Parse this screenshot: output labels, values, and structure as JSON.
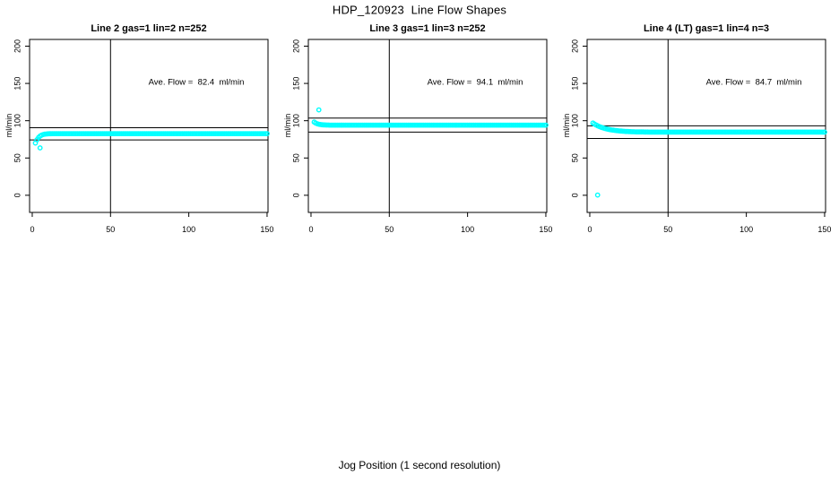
{
  "page": {
    "title": "HDP_120923  Line Flow Shapes",
    "xlabel": "Jog Position (1 second resolution)"
  },
  "style": {
    "point_color": "#00ffff",
    "axis_color": "#000000",
    "background": "#ffffff"
  },
  "chart_data": [
    {
      "type": "scatter",
      "title": "Line 2 gas=1 lin=2 n=252",
      "ylabel": "ml/min",
      "annotation": "Ave. Flow =  82.4  ml/min",
      "ave_flow_ml_min": 82.4,
      "xlim": [
        -1.7,
        150.6
      ],
      "ylim": [
        -23,
        209
      ],
      "xticks": [
        0,
        50,
        100,
        150
      ],
      "yticks": [
        0,
        50,
        100,
        150,
        200
      ],
      "vline_x": 50,
      "hlines_y": [
        90.6,
        74.2
      ],
      "grid": false,
      "series": {
        "x_start": 2,
        "x_step": 1,
        "x_end": 150,
        "y_head": [
          70.0,
          74.5,
          77.5,
          79.4,
          80.6,
          81.4,
          81.9,
          82.2,
          82.4,
          82.5,
          82.6,
          82.7
        ],
        "y_plateau": 82.7
      },
      "outlier_points": [
        [
          5,
          63.5
        ]
      ]
    },
    {
      "type": "scatter",
      "title": "Line 3 gas=1 lin=3 n=252",
      "ylabel": "ml/min",
      "annotation": "Ave. Flow =  94.1  ml/min",
      "ave_flow_ml_min": 94.1,
      "xlim": [
        -1.7,
        150.6
      ],
      "ylim": [
        -23,
        209
      ],
      "xticks": [
        0,
        50,
        100,
        150
      ],
      "yticks": [
        0,
        50,
        100,
        150,
        200
      ],
      "vline_x": 50,
      "hlines_y": [
        103.5,
        84.7
      ],
      "grid": false,
      "series": {
        "x_start": 2,
        "x_step": 1,
        "x_end": 150,
        "y_head": [
          98.2,
          96.8,
          95.9,
          95.3,
          94.9,
          94.6,
          94.4,
          94.3,
          94.2,
          94.2,
          94.1,
          94.1
        ],
        "y_plateau": 94.1
      },
      "outlier_points": [
        [
          5,
          114.5
        ]
      ]
    },
    {
      "type": "scatter",
      "title": "Line 4 (LT) gas=1 lin=4 n=3",
      "ylabel": "ml/min",
      "annotation": "Ave. Flow =  84.7  ml/min",
      "ave_flow_ml_min": 84.7,
      "xlim": [
        -1.7,
        150.6
      ],
      "ylim": [
        -23,
        209
      ],
      "xticks": [
        0,
        50,
        100,
        150
      ],
      "yticks": [
        0,
        50,
        100,
        150,
        200
      ],
      "vline_x": 50,
      "hlines_y": [
        93.2,
        76.2
      ],
      "grid": false,
      "series": {
        "x_start": 2,
        "x_step": 1,
        "x_end": 150,
        "y_head": [
          96.9,
          95.5,
          94.3,
          93.2,
          92.3,
          91.4,
          90.7,
          90.0,
          89.4,
          88.9,
          88.4,
          88.0,
          87.6,
          87.3,
          87.0,
          86.7,
          86.5,
          86.3,
          86.1,
          85.9,
          85.8,
          85.6,
          85.5,
          85.4,
          85.3,
          85.2,
          85.2,
          85.1,
          85.0,
          85.0,
          84.9,
          84.9,
          84.9,
          84.8,
          84.8,
          84.8,
          84.7,
          84.7,
          84.7,
          84.7
        ],
        "y_plateau": 84.7
      },
      "outlier_points": [
        [
          5,
          0.3
        ]
      ]
    }
  ]
}
